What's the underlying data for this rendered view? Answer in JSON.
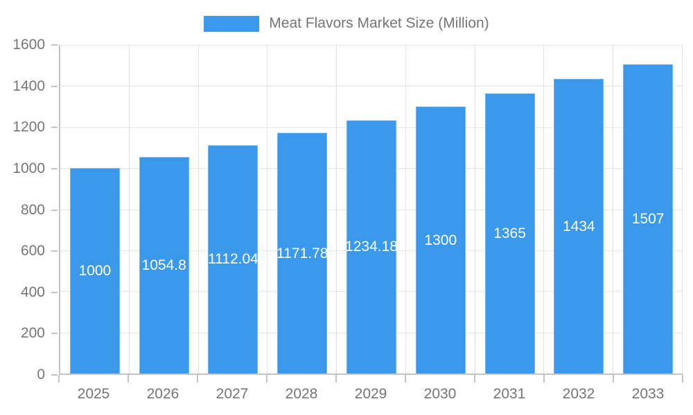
{
  "chart_data": {
    "type": "bar",
    "title": "Meat Flavors Market Size (Million)",
    "categories": [
      "2025",
      "2026",
      "2027",
      "2028",
      "2029",
      "2030",
      "2031",
      "2032",
      "2033"
    ],
    "values": [
      1000,
      1054.8,
      1112.04,
      1171.78,
      1234.18,
      1300,
      1365,
      1434,
      1507
    ],
    "value_labels": [
      "1000",
      "1054.8",
      "1112.04",
      "1171.78",
      "1234.18",
      "1300",
      "1365",
      "1434",
      "1507"
    ],
    "xlabel": "",
    "ylabel": "",
    "ylim": [
      0,
      1600
    ],
    "y_tick_step": 200,
    "y_ticks": [
      0,
      200,
      400,
      600,
      800,
      1000,
      1200,
      1400,
      1600
    ],
    "grid": true,
    "legend_position": "top",
    "colors": {
      "bar_fill": "#3b99ec",
      "bar_border": "#72b5f2",
      "bar_label_text": "#ffffff",
      "axis_text": "#757575",
      "gridline": "#e6e6e6",
      "axis_line": "#c3c3c3",
      "background": "#ffffff"
    }
  }
}
